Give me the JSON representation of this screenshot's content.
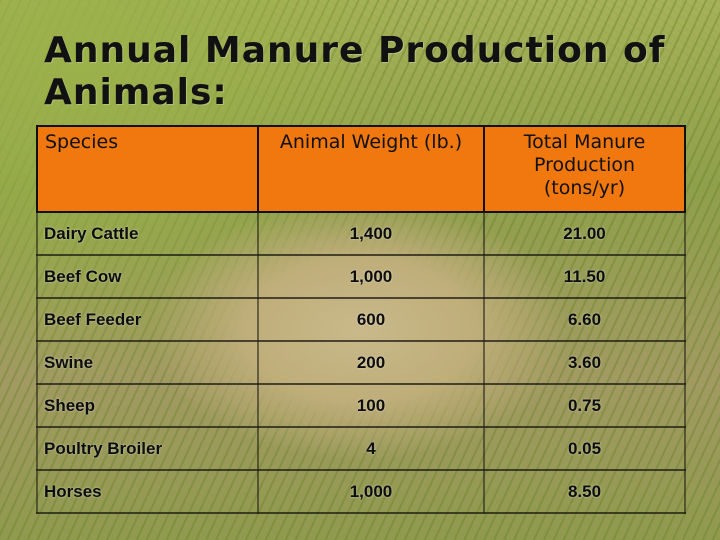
{
  "title": "Annual Manure Production of Animals:",
  "table": {
    "headers": [
      "Species",
      "Animal Weight (lb.)",
      "Total Manure Production (tons/yr)"
    ],
    "rows": [
      [
        "Dairy Cattle",
        "1,400",
        "21.00"
      ],
      [
        "Beef Cow",
        "1,000",
        "11.50"
      ],
      [
        "Beef Feeder",
        "600",
        "6.60"
      ],
      [
        "Swine",
        "200",
        "3.60"
      ],
      [
        "Sheep",
        "100",
        "0.75"
      ],
      [
        "Poultry Broiler",
        "4",
        "0.05"
      ],
      [
        "Horses",
        "1,000",
        "8.50"
      ]
    ]
  },
  "colors": {
    "header_fill": "#f0780f",
    "text": "#111111"
  }
}
